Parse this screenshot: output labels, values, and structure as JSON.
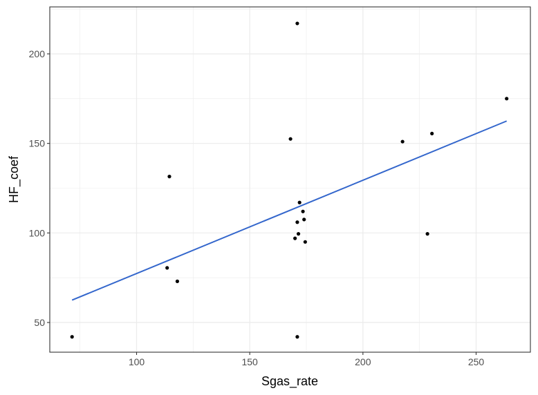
{
  "chart_data": {
    "type": "scatter",
    "xlabel": "Sgas_rate",
    "ylabel": "HF_coef",
    "xlim": [
      71.5,
      267.5
    ],
    "ylim": [
      33.5,
      227
    ],
    "x_ticks": [
      100,
      150,
      200,
      250
    ],
    "y_ticks": [
      50,
      100,
      150,
      200
    ],
    "x_tick_labels": [
      "100",
      "150",
      "200",
      "250"
    ],
    "y_tick_labels": [
      "50",
      "100",
      "150",
      "200"
    ],
    "grid": true,
    "points": [
      {
        "x": 71.5,
        "y": 42
      },
      {
        "x": 113.5,
        "y": 80.5
      },
      {
        "x": 114.5,
        "y": 131.5
      },
      {
        "x": 118,
        "y": 73
      },
      {
        "x": 168,
        "y": 152.5
      },
      {
        "x": 170,
        "y": 97
      },
      {
        "x": 171,
        "y": 106
      },
      {
        "x": 171,
        "y": 217
      },
      {
        "x": 171,
        "y": 42
      },
      {
        "x": 171.5,
        "y": 99.5
      },
      {
        "x": 172,
        "y": 117
      },
      {
        "x": 173.5,
        "y": 112
      },
      {
        "x": 174,
        "y": 107.5
      },
      {
        "x": 174.5,
        "y": 95
      },
      {
        "x": 217.5,
        "y": 151
      },
      {
        "x": 228.5,
        "y": 99.5
      },
      {
        "x": 230.5,
        "y": 155.5
      },
      {
        "x": 263.5,
        "y": 175
      }
    ],
    "fit_line": {
      "x": [
        71.5,
        263.5
      ],
      "y": [
        62.5,
        162.5
      ]
    },
    "colors": {
      "points": "#000000",
      "fit_line": "#3366cc",
      "grid": "#ebebeb",
      "panel_border": "#333333"
    }
  }
}
